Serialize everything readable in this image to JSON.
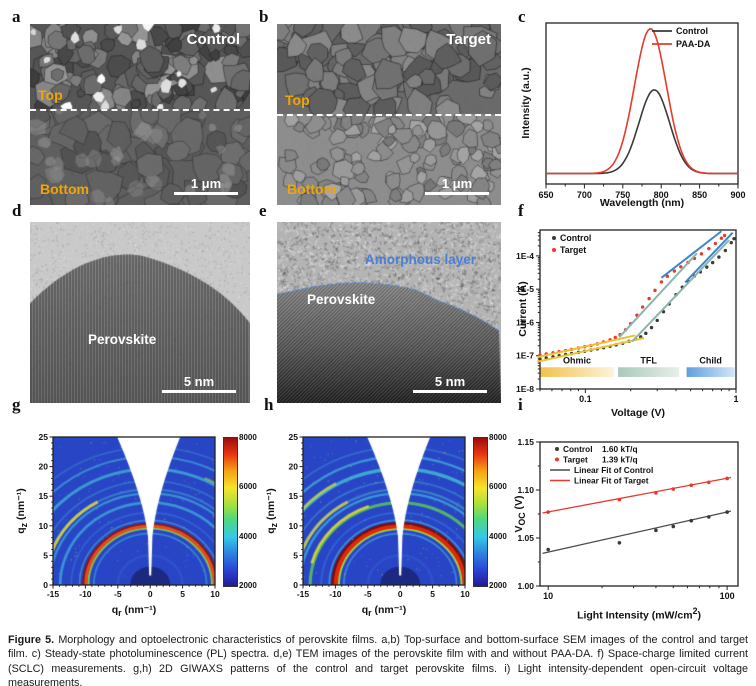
{
  "figure": {
    "letters": {
      "a": "a",
      "b": "b",
      "c": "c",
      "d": "d",
      "e": "e",
      "f": "f",
      "g": "g",
      "h": "h",
      "i": "i"
    },
    "caption_label": "Figure 5.",
    "caption_text": "Morphology and optoelectronic characteristics of perovskite films. a,b) Top-surface and bottom-surface SEM images of the control and target film. c) Steady-state photoluminescence (PL) spectra. d,e) TEM images of the perovskite film with and without PAA-DA. f) Space-charge limited current (SCLC) measurements. g,h) 2D GIWAXS patterns of the control and target perovskite films. i) Light intensity-dependent open-circuit voltage measurements."
  },
  "colors": {
    "accent_red": "#e8392b",
    "label_orange": "#f0a500",
    "tem_blue": "#4a7fd8",
    "fit_yellow": "#eec22e",
    "fit_teal": "#8ab5ac",
    "fit_blue": "#3f86c8"
  },
  "panels": {
    "a": {
      "title": "Control",
      "top_label": "Top",
      "bottom_label": "Bottom",
      "scalebar": "1 μm"
    },
    "b": {
      "title": "Target",
      "top_label": "Top",
      "bottom_label": "Bottom",
      "scalebar": "1 μm"
    },
    "d": {
      "material_label": "Perovskite",
      "scalebar": "5 nm"
    },
    "e": {
      "material_label": "Perovskite",
      "amorphous_label": "Amorphous layer",
      "scalebar": "5 nm"
    }
  },
  "chart_data": [
    {
      "id": "pl_spectra",
      "panel": "c",
      "type": "line",
      "xlabel": "Wavelength (nm)",
      "ylabel": "Intensity (a.u.)",
      "xlim": [
        650,
        900
      ],
      "xticks": [
        650,
        700,
        750,
        800,
        850,
        900
      ],
      "xminor_step": 25,
      "legend_position": "top-right",
      "series": [
        {
          "name": "Control",
          "color": "#3a3a3a",
          "peak_nm": 791,
          "fwhm_nm": 47,
          "amplitude": 0.52,
          "baseline": 0.065,
          "points": [
            [
              650,
              0.065
            ],
            [
              700,
              0.068
            ],
            [
              720,
              0.066
            ],
            [
              740,
              0.085
            ],
            [
              750,
              0.128
            ],
            [
              760,
              0.222
            ],
            [
              770,
              0.365
            ],
            [
              780,
              0.512
            ],
            [
              791,
              0.585
            ],
            [
              800,
              0.535
            ],
            [
              810,
              0.396
            ],
            [
              820,
              0.247
            ],
            [
              830,
              0.143
            ],
            [
              840,
              0.091
            ],
            [
              850,
              0.072
            ],
            [
              870,
              0.066
            ],
            [
              900,
              0.065
            ]
          ]
        },
        {
          "name": "PAA-DA",
          "color": "#e8392b",
          "peak_nm": 786,
          "fwhm_nm": 49,
          "amplitude": 0.9,
          "baseline": 0.065,
          "points": [
            [
              650,
              0.065
            ],
            [
              700,
              0.066
            ],
            [
              720,
              0.072
            ],
            [
              740,
              0.147
            ],
            [
              750,
              0.272
            ],
            [
              760,
              0.483
            ],
            [
              770,
              0.738
            ],
            [
              780,
              0.929
            ],
            [
              786,
              0.965
            ],
            [
              790,
              0.949
            ],
            [
              800,
              0.786
            ],
            [
              810,
              0.533
            ],
            [
              820,
              0.308
            ],
            [
              830,
              0.165
            ],
            [
              840,
              0.098
            ],
            [
              850,
              0.074
            ],
            [
              870,
              0.066
            ],
            [
              900,
              0.065
            ]
          ]
        }
      ]
    },
    {
      "id": "sclc",
      "panel": "f",
      "type": "scatter",
      "xlabel": "Voltage (V)",
      "ylabel": "Current (A)",
      "xscale": "log",
      "yscale": "log",
      "xlim": [
        0.05,
        1.0
      ],
      "ylim": [
        1e-08,
        0.0006
      ],
      "xticks": [
        0.1,
        1
      ],
      "ytick_labels": [
        "1E-8",
        "1E-7",
        "1E-6",
        "1E-5",
        "1E-4"
      ],
      "series": [
        {
          "name": "Control",
          "color": "#3a3a3a",
          "points": [
            [
              0.05,
              8e-08
            ],
            [
              0.055,
              8.6e-08
            ],
            [
              0.061,
              9.3e-08
            ],
            [
              0.067,
              1e-07
            ],
            [
              0.074,
              1.08e-07
            ],
            [
              0.081,
              1.16e-07
            ],
            [
              0.09,
              1.26e-07
            ],
            [
              0.099,
              1.36e-07
            ],
            [
              0.109,
              1.48e-07
            ],
            [
              0.12,
              1.6e-07
            ],
            [
              0.132,
              1.74e-07
            ],
            [
              0.146,
              1.92e-07
            ],
            [
              0.16,
              2.12e-07
            ],
            [
              0.177,
              2.38e-07
            ],
            [
              0.195,
              2.72e-07
            ],
            [
              0.215,
              3.15e-07
            ],
            [
              0.233,
              3.7e-07
            ],
            [
              0.252,
              4.7e-07
            ],
            [
              0.275,
              7e-07
            ],
            [
              0.3,
              1.15e-06
            ],
            [
              0.33,
              2.1e-06
            ],
            [
              0.36,
              3.6e-06
            ],
            [
              0.4,
              6.8e-06
            ],
            [
              0.44,
              1.15e-05
            ],
            [
              0.48,
              1.75e-05
            ],
            [
              0.53,
              2.5e-05
            ],
            [
              0.58,
              3.3e-05
            ],
            [
              0.64,
              4.6e-05
            ],
            [
              0.7,
              6.3e-05
            ],
            [
              0.77,
              9.2e-05
            ],
            [
              0.85,
              0.000145
            ],
            [
              0.93,
              0.00025
            ],
            [
              0.97,
              0.00033
            ]
          ]
        },
        {
          "name": "Target",
          "color": "#e8392b",
          "points": [
            [
              0.05,
              1.05e-07
            ],
            [
              0.055,
              1.13e-07
            ],
            [
              0.061,
              1.22e-07
            ],
            [
              0.067,
              1.32e-07
            ],
            [
              0.074,
              1.43e-07
            ],
            [
              0.081,
              1.55e-07
            ],
            [
              0.09,
              1.7e-07
            ],
            [
              0.099,
              1.86e-07
            ],
            [
              0.109,
              2.04e-07
            ],
            [
              0.12,
              2.28e-07
            ],
            [
              0.132,
              2.6e-07
            ],
            [
              0.146,
              3e-07
            ],
            [
              0.158,
              3.55e-07
            ],
            [
              0.17,
              4.3e-07
            ],
            [
              0.185,
              6e-07
            ],
            [
              0.2,
              9.2e-07
            ],
            [
              0.22,
              1.65e-06
            ],
            [
              0.24,
              2.9e-06
            ],
            [
              0.265,
              5.2e-06
            ],
            [
              0.29,
              9.2e-06
            ],
            [
              0.32,
              1.65e-05
            ],
            [
              0.35,
              2.45e-05
            ],
            [
              0.39,
              3.5e-05
            ],
            [
              0.43,
              4.7e-05
            ],
            [
              0.48,
              6.3e-05
            ],
            [
              0.53,
              8.4e-05
            ],
            [
              0.59,
              0.000115
            ],
            [
              0.66,
              0.000165
            ],
            [
              0.73,
              0.000235
            ],
            [
              0.8,
              0.00034
            ],
            [
              0.84,
              0.00041
            ]
          ]
        }
      ],
      "fits": [
        {
          "name": "Ohmic fit Control",
          "color": "#eec22e",
          "x1": 0.048,
          "y1": 6.6e-08,
          "x2": 0.245,
          "y2": 3.4e-07
        },
        {
          "name": "Ohmic fit Target",
          "color": "#eec22e",
          "x1": 0.048,
          "y1": 9e-08,
          "x2": 0.215,
          "y2": 4.1e-07
        },
        {
          "name": "TFL fit Control",
          "color": "#8ab5ac",
          "x1": 0.205,
          "y1": 2.7e-07,
          "x2": 0.9,
          "y2": 0.0003
        },
        {
          "name": "TFL fit Target",
          "color": "#8ab5ac",
          "x1": 0.168,
          "y1": 3.6e-07,
          "x2": 0.55,
          "y2": 0.00012
        },
        {
          "name": "Child fit Control",
          "color": "#3f86c8",
          "x1": 0.46,
          "y1": 1.6e-05,
          "x2": 0.95,
          "y2": 0.0005
        },
        {
          "name": "Child fit Target",
          "color": "#3f86c8",
          "x1": 0.32,
          "y1": 2.2e-05,
          "x2": 0.8,
          "y2": 0.00055
        }
      ],
      "regions": [
        {
          "label": "Ohmic",
          "from": 0.05,
          "to": 0.155,
          "color_start": "#f2c14e",
          "color_end": "#fdf3da"
        },
        {
          "label": "TFL",
          "from": 0.165,
          "to": 0.42,
          "color_start": "#a9c9bb",
          "color_end": "#e8efe9"
        },
        {
          "label": "Child",
          "from": 0.47,
          "to": 0.98,
          "color_start": "#5f9fdc",
          "color_end": "#d3e6f7"
        }
      ]
    },
    {
      "id": "giwaxs_control",
      "panel": "g",
      "type": "heatmap",
      "xlabel": "qr (nm⁻¹)",
      "ylabel": "qz (nm⁻¹)",
      "xlabel_html": "q<sub>r</sub> (nm⁻¹)",
      "ylabel_html": "q<sub>z</sub> (nm⁻¹)",
      "xlim": [
        -15,
        10
      ],
      "ylim": [
        0,
        25
      ],
      "xticks": [
        -15,
        -10,
        -5,
        0,
        5,
        10
      ],
      "yticks": [
        0,
        5,
        10,
        15,
        20,
        25
      ],
      "background": "#2845c6",
      "colorbar": {
        "min": 2000,
        "max": 8000,
        "ticks": [
          2000,
          4000,
          6000,
          8000
        ]
      },
      "rings": [
        {
          "q": 5.0,
          "color": "#3f6fd8",
          "w": 0.45,
          "alpha": 0.3
        },
        {
          "q": 8.7,
          "color": "#43b8e0",
          "w": 0.3,
          "alpha": 0.5
        },
        {
          "q": 9.55,
          "color": "#8fd83f",
          "w": 0.35,
          "alpha": 0.85
        },
        {
          "q": 9.95,
          "color": "#e84a18",
          "w": 0.55,
          "alpha": 1
        },
        {
          "q": 10.35,
          "color": "#8f1208",
          "w": 0.35,
          "alpha": 0.85
        },
        {
          "q": 10.9,
          "color": "#3fc0e8",
          "w": 0.28,
          "alpha": 0.5
        },
        {
          "q": 12.2,
          "color": "#3f8fe0",
          "w": 0.3,
          "alpha": 0.35
        },
        {
          "q": 13.9,
          "color": "#46c8dc",
          "w": 0.45,
          "alpha": 0.6
        },
        {
          "q": 15.5,
          "color": "#46c8dc",
          "w": 0.38,
          "alpha": 0.55
        },
        {
          "q": 16.2,
          "color": "#49c8c8",
          "w": 0.35,
          "alpha": 0.4
        },
        {
          "q": 16.2,
          "color": "#e8df35",
          "w": 0.5,
          "alpha": 0.8,
          "seg": [
            20,
            60
          ]
        },
        {
          "q": 17.6,
          "color": "#49b8d8",
          "w": 0.3,
          "alpha": 0.35
        },
        {
          "q": 19.6,
          "color": "#49d0d8",
          "w": 0.5,
          "alpha": 0.6
        },
        {
          "q": 19.9,
          "color": "#a8e03a",
          "w": 0.4,
          "alpha": 0.55,
          "seg": [
            115,
            160
          ]
        },
        {
          "q": 21.7,
          "color": "#49c8dc",
          "w": 0.35,
          "alpha": 0.5
        },
        {
          "q": 23.3,
          "color": "#49b0d0",
          "w": 0.3,
          "alpha": 0.3
        }
      ]
    },
    {
      "id": "giwaxs_target",
      "panel": "h",
      "type": "heatmap",
      "xlabel": "qr (nm⁻¹)",
      "ylabel": "qz (nm⁻¹)",
      "xlabel_html": "q<sub>r</sub> (nm⁻¹)",
      "ylabel_html": "q<sub>z</sub> (nm⁻¹)",
      "xlim": [
        -15,
        10
      ],
      "ylim": [
        0,
        25
      ],
      "xticks": [
        -15,
        -10,
        -5,
        0,
        5,
        10
      ],
      "yticks": [
        0,
        5,
        10,
        15,
        20,
        25
      ],
      "background": "#2845c6",
      "colorbar": {
        "min": 2000,
        "max": 8000,
        "ticks": [
          2000,
          4000,
          6000,
          8000
        ]
      },
      "rings": [
        {
          "q": 5.0,
          "color": "#3f6fd8",
          "w": 0.45,
          "alpha": 0.3
        },
        {
          "q": 8.7,
          "color": "#43b8e0",
          "w": 0.3,
          "alpha": 0.55
        },
        {
          "q": 9.5,
          "color": "#a8e03a",
          "w": 0.4,
          "alpha": 0.9
        },
        {
          "q": 9.95,
          "color": "#e02808",
          "w": 0.7,
          "alpha": 1
        },
        {
          "q": 10.45,
          "color": "#7a0d05",
          "w": 0.4,
          "alpha": 0.95
        },
        {
          "q": 10.95,
          "color": "#3fc0e8",
          "w": 0.3,
          "alpha": 0.6
        },
        {
          "q": 12.2,
          "color": "#3f8fe0",
          "w": 0.3,
          "alpha": 0.4
        },
        {
          "q": 13.9,
          "color": "#5fd84a",
          "w": 0.5,
          "alpha": 0.75
        },
        {
          "q": 14.15,
          "color": "#f0e02a",
          "w": 0.45,
          "alpha": 0.8,
          "seg": [
            15,
            70
          ]
        },
        {
          "q": 15.5,
          "color": "#46c8dc",
          "w": 0.4,
          "alpha": 0.6
        },
        {
          "q": 16.2,
          "color": "#49c8c8",
          "w": 0.38,
          "alpha": 0.45
        },
        {
          "q": 16.2,
          "color": "#e8df35",
          "w": 0.5,
          "alpha": 0.7,
          "seg": [
            20,
            60
          ]
        },
        {
          "q": 17.6,
          "color": "#49b8d8",
          "w": 0.3,
          "alpha": 0.4
        },
        {
          "q": 19.6,
          "color": "#49d0d8",
          "w": 0.55,
          "alpha": 0.7
        },
        {
          "q": 19.8,
          "color": "#d8e030",
          "w": 0.45,
          "alpha": 0.7,
          "seg": [
            15,
            60
          ]
        },
        {
          "q": 19.8,
          "color": "#b8e03a",
          "w": 0.4,
          "alpha": 0.6,
          "seg": [
            120,
            165
          ]
        },
        {
          "q": 21.7,
          "color": "#49c8dc",
          "w": 0.4,
          "alpha": 0.6
        },
        {
          "q": 23.3,
          "color": "#49b0d0",
          "w": 0.3,
          "alpha": 0.35
        }
      ]
    },
    {
      "id": "voc",
      "panel": "i",
      "type": "scatter",
      "xlabel": "Light Intensity (mW/cm2)",
      "xlabel_html": "Light Intensity (mW/cm<sup>2</sup>)",
      "ylabel": "VOC (V)",
      "ylabel_html": "V<sub>OC</sub> (V)",
      "xscale": "log",
      "xlim": [
        9,
        115
      ],
      "ylim": [
        1.0,
        1.15
      ],
      "xticks": [
        10,
        100
      ],
      "yticks": [
        1.0,
        1.05,
        1.1,
        1.15
      ],
      "series": [
        {
          "name": "Control",
          "slope_label": "1.60 kT/q",
          "color": "#3a3a3a",
          "points": [
            [
              10,
              1.038
            ],
            [
              25,
              1.045
            ],
            [
              40,
              1.058
            ],
            [
              50,
              1.062
            ],
            [
              63,
              1.068
            ],
            [
              79,
              1.072
            ],
            [
              100,
              1.077
            ]
          ]
        },
        {
          "name": "Target",
          "slope_label": "1.39 kT/q",
          "color": "#e8392b",
          "points": [
            [
              10,
              1.077
            ],
            [
              25,
              1.09
            ],
            [
              40,
              1.097
            ],
            [
              50,
              1.101
            ],
            [
              63,
              1.105
            ],
            [
              79,
              1.108
            ],
            [
              100,
              1.112
            ]
          ]
        }
      ],
      "fits": [
        {
          "name": "Linear Fit of Control",
          "color": "#4a4a4a",
          "x1": 9.3,
          "y1": 1.034,
          "x2": 105,
          "y2": 1.078
        },
        {
          "name": "Linear Fit of Target",
          "color": "#e8392b",
          "x1": 9.3,
          "y1": 1.076,
          "x2": 105,
          "y2": 1.113
        }
      ]
    }
  ]
}
